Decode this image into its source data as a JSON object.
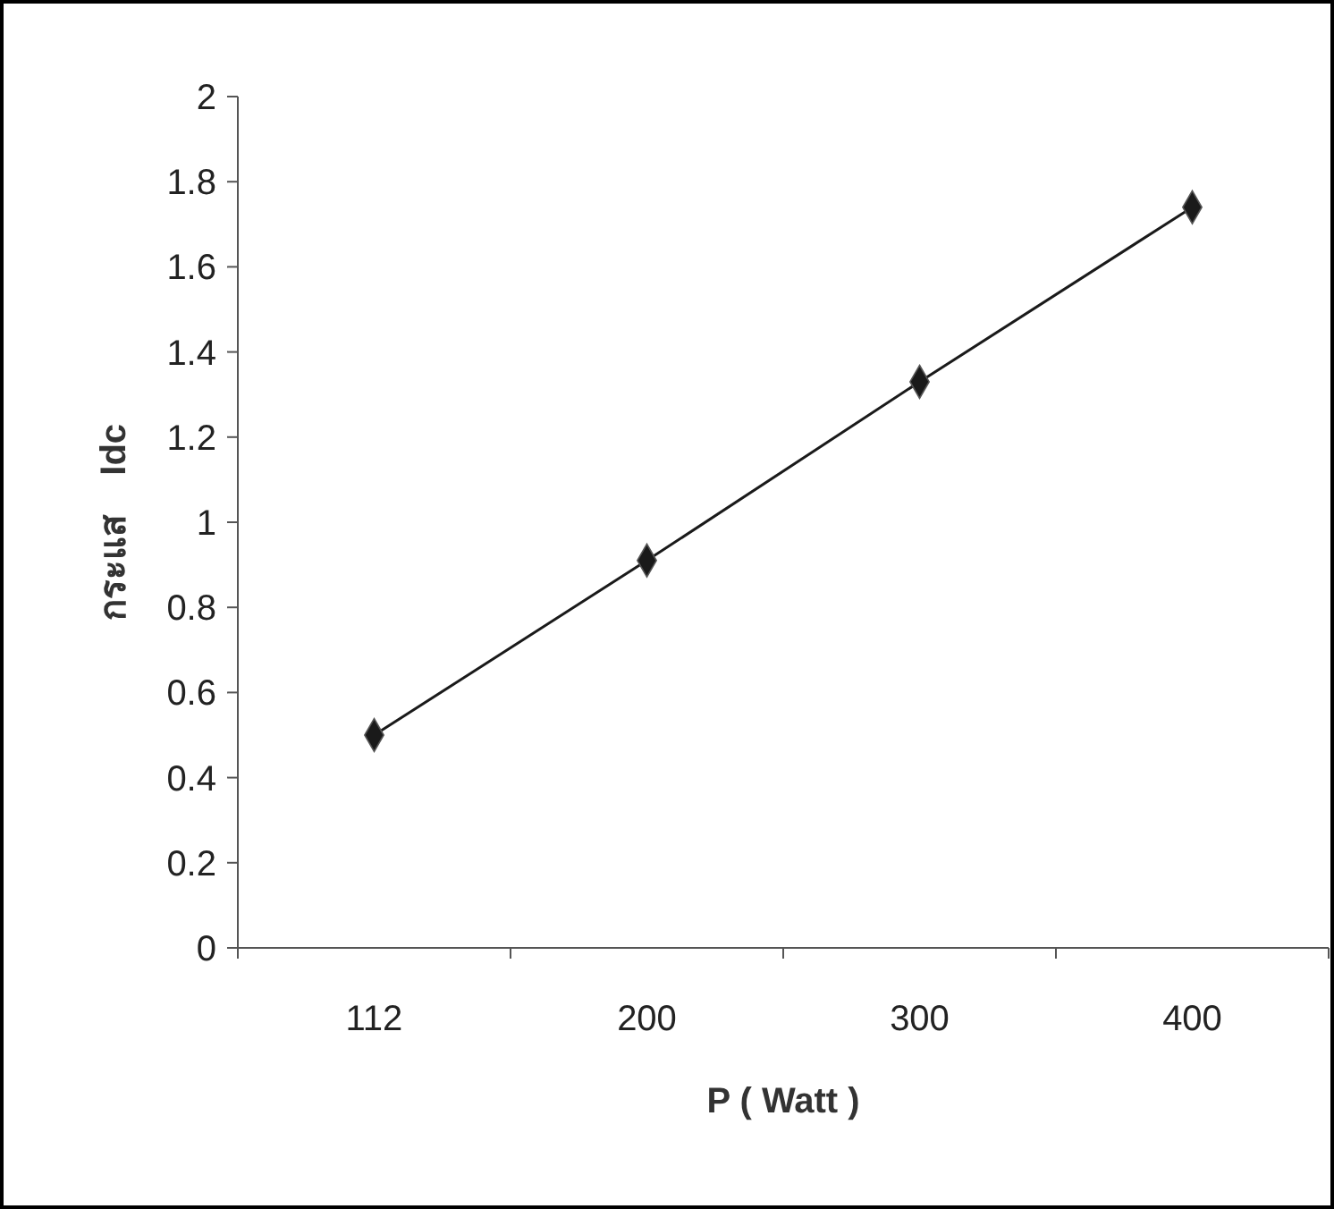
{
  "chart_data": {
    "type": "line",
    "xlabel": "P ( Watt )",
    "ylabel": "กระแส    Idc",
    "categories": [
      "112",
      "200",
      "300",
      "400"
    ],
    "series": [
      {
        "color": "#1a1a1a",
        "values": [
          0.5,
          0.91,
          1.33,
          1.74
        ]
      }
    ],
    "ylim": [
      0,
      2
    ],
    "yticks": [
      0,
      0.2,
      0.4,
      0.6,
      0.8,
      1,
      1.2,
      1.4,
      1.6,
      1.8,
      2
    ],
    "marker": "diamond",
    "line_style": "solid",
    "grid": false
  }
}
